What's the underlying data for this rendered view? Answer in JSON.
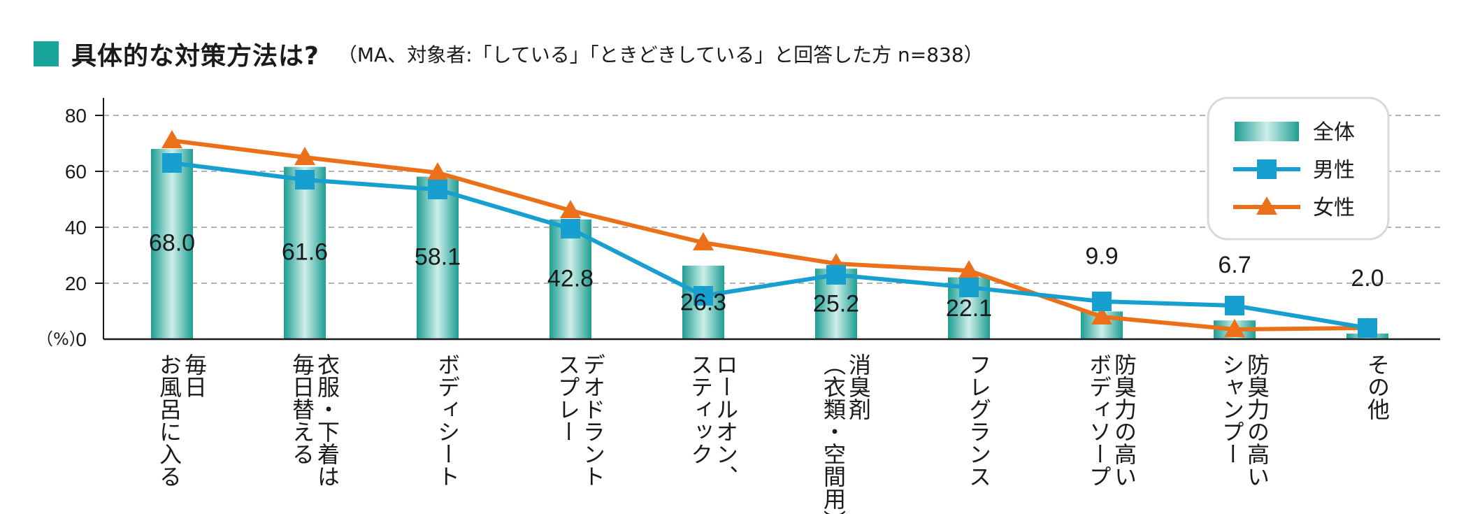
{
  "title": {
    "main": "具体的な対策方法は?",
    "sub": "（MA、対象者:「している」「ときどきしている」と回答した方 n=838）"
  },
  "colors": {
    "accent": "#1aa59a",
    "bar_edge": "#1f9e93",
    "bar_mid": "#cdeee9",
    "male": "#17a0cf",
    "female": "#ec7019",
    "grid": "#9a9a9a",
    "legend_border": "#d9d9d9"
  },
  "chart_data": {
    "type": "bar",
    "ylim": [
      0,
      80
    ],
    "yticks": [
      0,
      20,
      40,
      60,
      80
    ],
    "ylabel": "（%）",
    "grid": "dashed horizontal",
    "legend_position": "top-right",
    "categories": [
      [
        "毎日",
        "お風呂に入る"
      ],
      [
        "衣服・下着は",
        "毎日替える"
      ],
      [
        "ボディシート"
      ],
      [
        "デオドラント",
        "スプレー"
      ],
      [
        "ロールオン、",
        "スティック"
      ],
      [
        "消臭剤",
        "（衣類・空間用）"
      ],
      [
        "フレグランス"
      ],
      [
        "防臭力の高い",
        "ボディソープ"
      ],
      [
        "防臭力の高い",
        "シャンプー"
      ],
      [
        "その他"
      ]
    ],
    "series": [
      {
        "name": "全体",
        "kind": "bar",
        "values": [
          68.0,
          61.6,
          58.1,
          42.8,
          26.3,
          25.2,
          22.1,
          9.9,
          6.7,
          2.0
        ],
        "labels": [
          "68.0",
          "61.6",
          "58.1",
          "42.8",
          "26.3",
          "25.2",
          "22.1",
          "9.9",
          "6.7",
          "2.0"
        ]
      },
      {
        "name": "男性",
        "kind": "line",
        "marker": "square",
        "values": [
          63,
          57,
          53.5,
          39.5,
          15.5,
          23,
          18.5,
          13.5,
          12,
          4
        ]
      },
      {
        "name": "女性",
        "kind": "line",
        "marker": "triangle",
        "values": [
          71,
          65,
          59.5,
          46,
          34.5,
          27,
          24.5,
          8,
          3.5,
          4
        ]
      }
    ]
  }
}
